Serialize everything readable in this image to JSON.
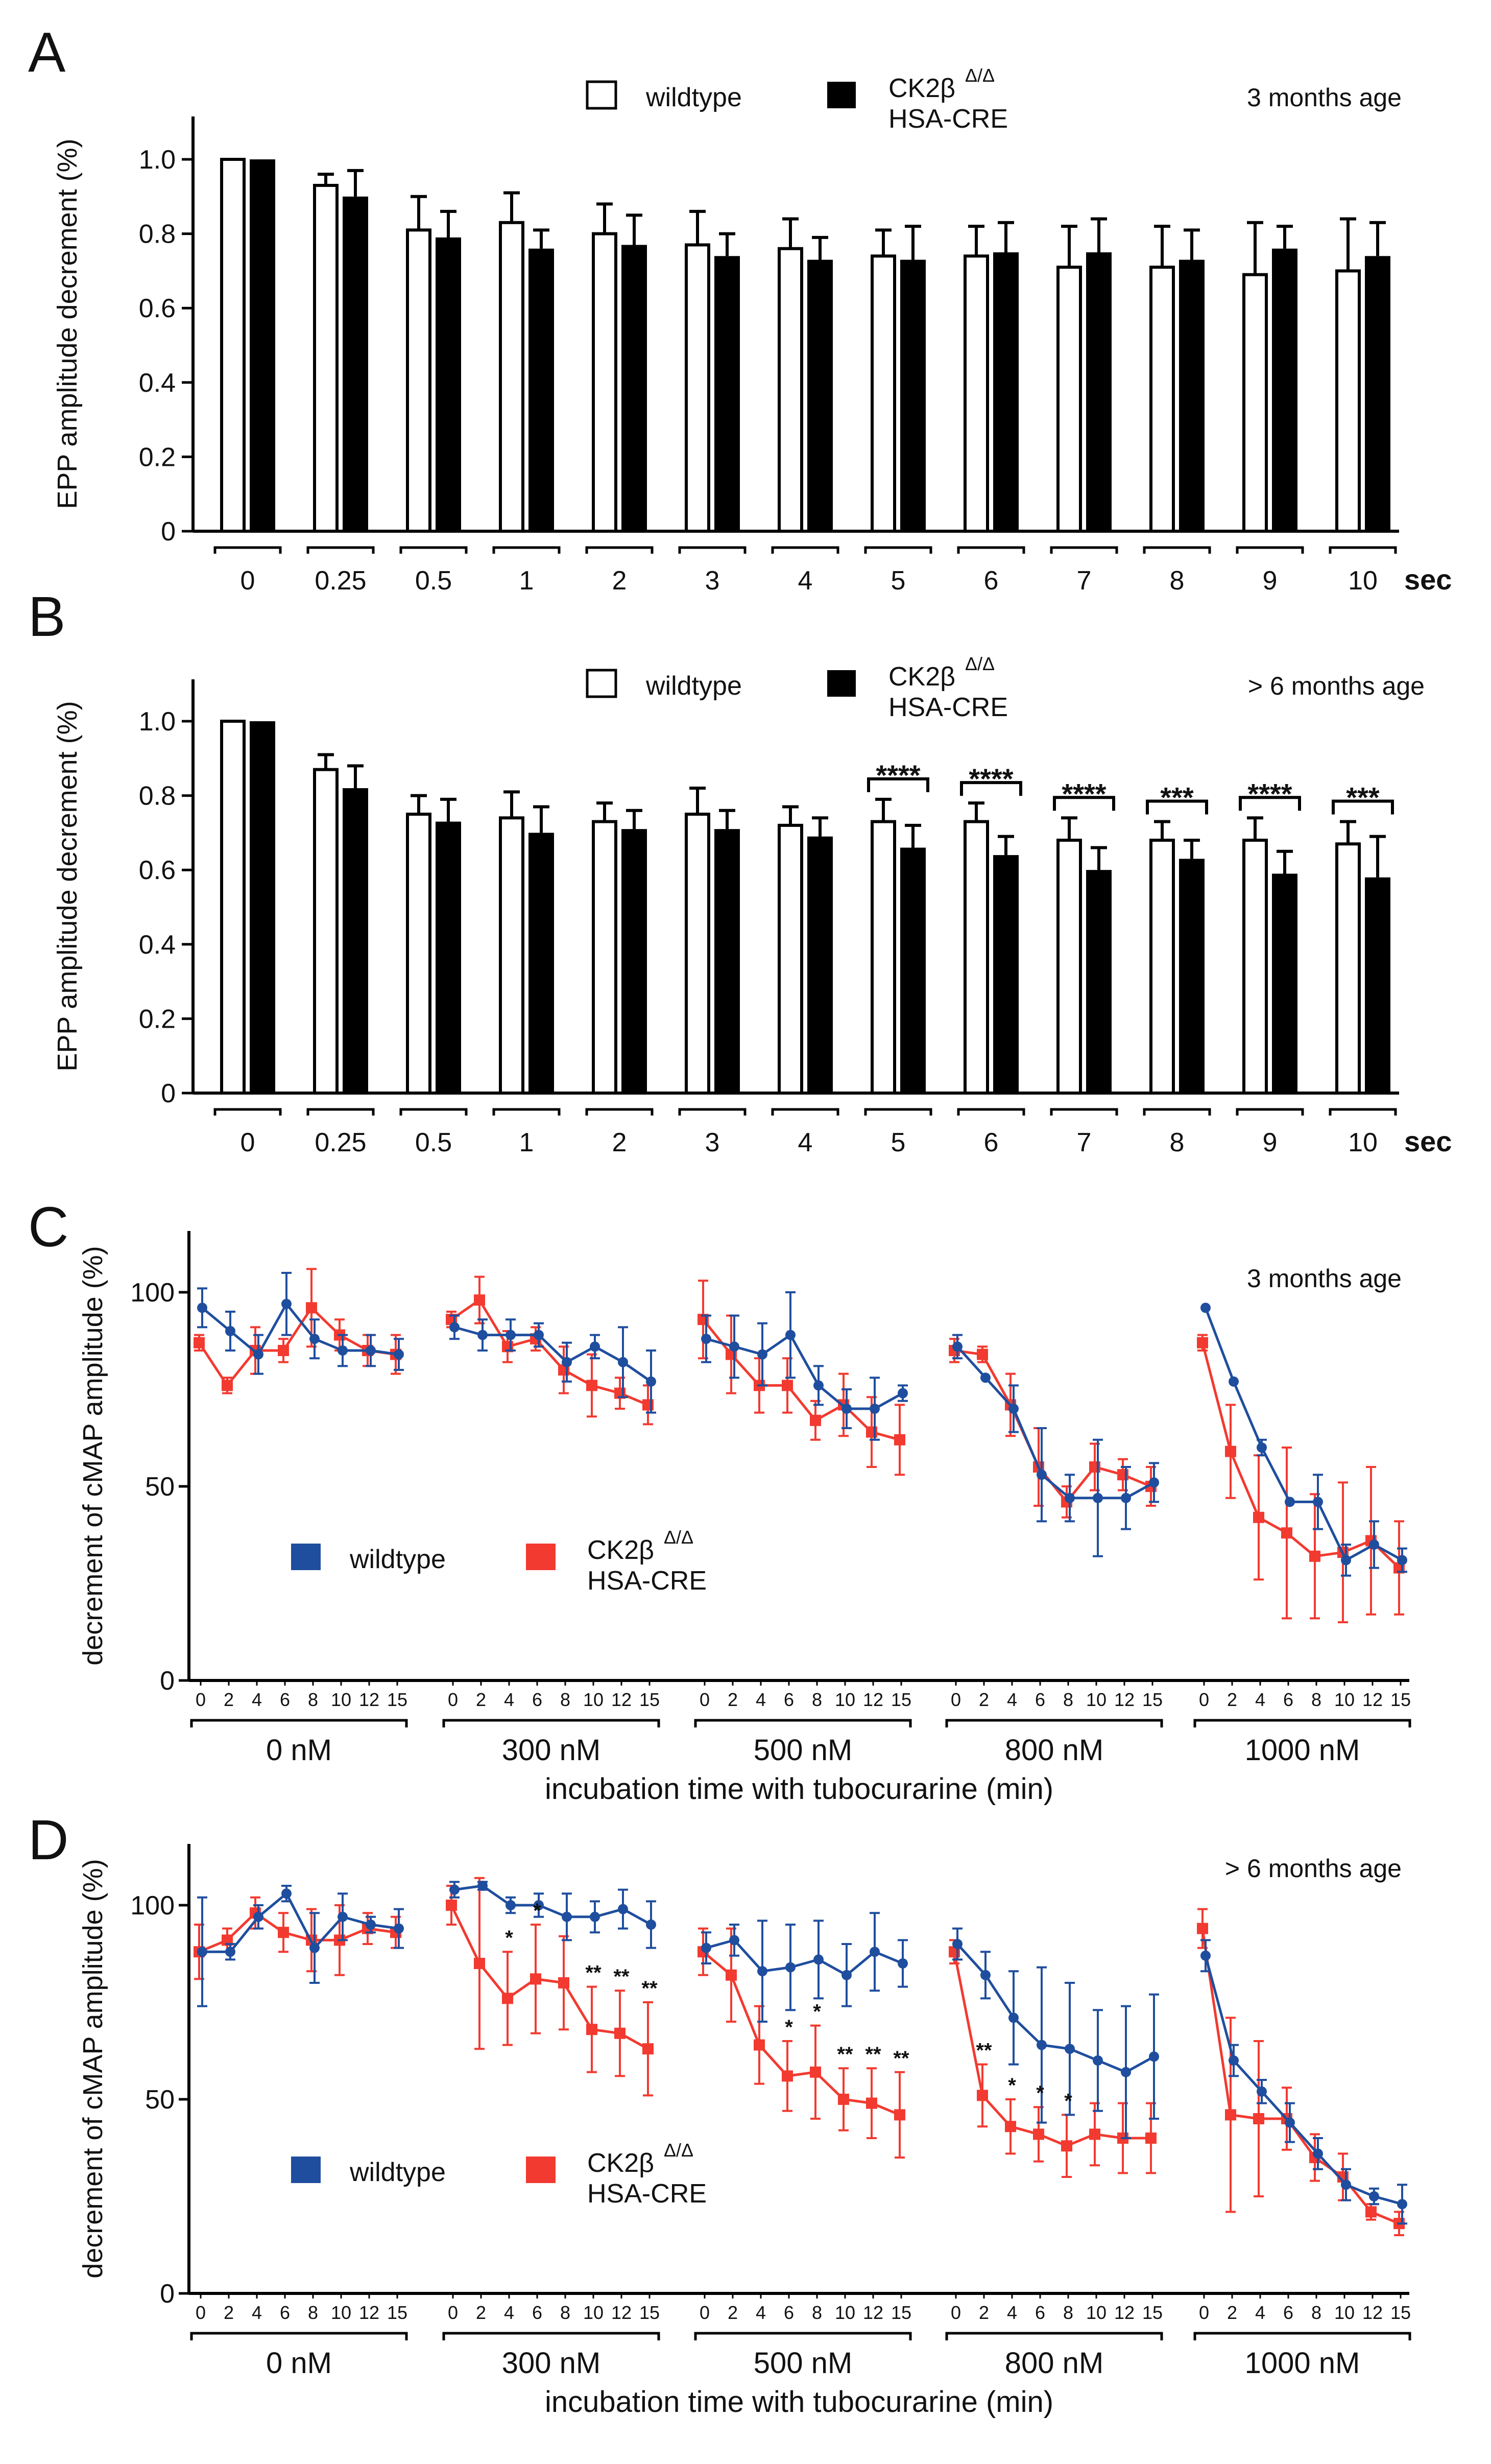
{
  "colors": {
    "wildtype_line": "#1f4e9e",
    "mutant_line": "#f23a30",
    "bar_black": "#000000",
    "bar_white": "#ffffff"
  },
  "legend": {
    "wildtype": "wildtype",
    "mutant_line1": "CK2β",
    "mutant_sup": "Δ/Δ",
    "mutant_line2": "HSA-CRE"
  },
  "chart_data": [
    {
      "panel": "A",
      "type": "bar",
      "age_label": "3 months age",
      "ylabel": "EPP amplitude decrement (%)",
      "ylim": [
        0,
        1.1
      ],
      "yticks": [
        "0",
        "0.2",
        "0.4",
        "0.6",
        "0.8",
        "1.0"
      ],
      "categories": [
        "0",
        "0.25",
        "0.5",
        "1",
        "2",
        "3",
        "4",
        "5",
        "6",
        "7",
        "8",
        "9",
        "10"
      ],
      "x_unit": "sec",
      "series": [
        {
          "name": "wildtype",
          "values": [
            1.0,
            0.93,
            0.81,
            0.83,
            0.8,
            0.77,
            0.76,
            0.74,
            0.74,
            0.71,
            0.71,
            0.69,
            0.7
          ],
          "errors": [
            0,
            0.03,
            0.09,
            0.08,
            0.08,
            0.09,
            0.08,
            0.07,
            0.08,
            0.11,
            0.11,
            0.14,
            0.14
          ]
        },
        {
          "name": "CK2β Δ/Δ HSA-CRE",
          "values": [
            1.0,
            0.9,
            0.79,
            0.76,
            0.77,
            0.74,
            0.73,
            0.73,
            0.75,
            0.75,
            0.73,
            0.76,
            0.74
          ],
          "errors": [
            0,
            0.07,
            0.07,
            0.05,
            0.08,
            0.06,
            0.06,
            0.09,
            0.08,
            0.09,
            0.08,
            0.06,
            0.09
          ]
        }
      ],
      "significance": []
    },
    {
      "panel": "B",
      "type": "bar",
      "age_label": "> 6 months age",
      "ylabel": "EPP amplitude decrement (%)",
      "ylim": [
        0,
        1.1
      ],
      "yticks": [
        "0",
        "0.2",
        "0.4",
        "0.6",
        "0.8",
        "1.0"
      ],
      "categories": [
        "0",
        "0.25",
        "0.5",
        "1",
        "2",
        "3",
        "4",
        "5",
        "6",
        "7",
        "8",
        "9",
        "10"
      ],
      "x_unit": "sec",
      "series": [
        {
          "name": "wildtype",
          "values": [
            1.0,
            0.87,
            0.75,
            0.74,
            0.73,
            0.75,
            0.72,
            0.73,
            0.73,
            0.68,
            0.68,
            0.68,
            0.67
          ],
          "errors": [
            0,
            0.04,
            0.05,
            0.07,
            0.05,
            0.07,
            0.05,
            0.06,
            0.05,
            0.06,
            0.05,
            0.06,
            0.06
          ]
        },
        {
          "name": "CK2β Δ/Δ HSA-CRE",
          "values": [
            1.0,
            0.82,
            0.73,
            0.7,
            0.71,
            0.71,
            0.69,
            0.66,
            0.64,
            0.6,
            0.63,
            0.59,
            0.58
          ],
          "errors": [
            0,
            0.06,
            0.06,
            0.07,
            0.05,
            0.05,
            0.05,
            0.06,
            0.05,
            0.06,
            0.05,
            0.06,
            0.11
          ]
        }
      ],
      "significance": [
        {
          "category": "5",
          "label": "****"
        },
        {
          "category": "6",
          "label": "****"
        },
        {
          "category": "7",
          "label": "****"
        },
        {
          "category": "8",
          "label": "***"
        },
        {
          "category": "9",
          "label": "****"
        },
        {
          "category": "10",
          "label": "***"
        }
      ]
    },
    {
      "panel": "C",
      "type": "line",
      "age_label": "3 months age",
      "ylabel": "decrement of cMAP amplitude (%)",
      "ylim": [
        0,
        105
      ],
      "yticks": [
        "0",
        "50",
        "100"
      ],
      "xlabel": "incubation time with tubocurarine (min)",
      "x_ticks": [
        "0",
        "2",
        "4",
        "6",
        "8",
        "10",
        "12",
        "15"
      ],
      "groups": [
        "0 nM",
        "300 nM",
        "500 nM",
        "800 nM",
        "1000 nM"
      ],
      "series": [
        {
          "name": "wildtype",
          "groups": [
            {
              "values": [
                96,
                90,
                84,
                97,
                88,
                85,
                85,
                84
              ],
              "errors": [
                5,
                5,
                5,
                8,
                5,
                4,
                4,
                4
              ]
            },
            {
              "values": [
                91,
                89,
                89,
                89,
                82,
                86,
                82,
                77
              ],
              "errors": [
                3,
                4,
                4,
                3,
                5,
                3,
                9,
                8
              ]
            },
            {
              "values": [
                88,
                86,
                84,
                89,
                76,
                70,
                70,
                74
              ],
              "errors": [
                6,
                8,
                8,
                11,
                5,
                5,
                8,
                2
              ]
            },
            {
              "values": [
                86,
                78,
                70,
                53,
                47,
                47,
                47,
                51
              ],
              "errors": [
                3,
                0,
                6,
                12,
                6,
                15,
                8,
                5
              ]
            },
            {
              "values": [
                96,
                77,
                60,
                46,
                46,
                31,
                35,
                31
              ],
              "errors": [
                0,
                0,
                2,
                0,
                7,
                4,
                6,
                3
              ]
            }
          ]
        },
        {
          "name": "CK2β Δ/Δ HSA-CRE",
          "groups": [
            {
              "values": [
                87,
                76,
                85,
                85,
                96,
                89,
                85,
                84
              ],
              "errors": [
                2,
                2,
                6,
                3,
                10,
                4,
                4,
                5
              ]
            },
            {
              "values": [
                93,
                98,
                86,
                88,
                80,
                76,
                74,
                71
              ],
              "errors": [
                2,
                6,
                4,
                3,
                6,
                8,
                4,
                5
              ]
            },
            {
              "values": [
                93,
                84,
                76,
                76,
                67,
                71,
                64,
                62
              ],
              "errors": [
                10,
                10,
                7,
                7,
                5,
                8,
                9,
                9
              ]
            },
            {
              "values": [
                85,
                84,
                71,
                55,
                46,
                55,
                53,
                50
              ],
              "errors": [
                3,
                2,
                8,
                10,
                4,
                6,
                4,
                5
              ]
            },
            {
              "values": [
                87,
                59,
                42,
                38,
                32,
                33,
                36,
                29
              ],
              "errors": [
                2,
                12,
                16,
                22,
                16,
                18,
                19,
                12
              ]
            }
          ]
        }
      ],
      "significance": []
    },
    {
      "panel": "D",
      "type": "line",
      "age_label": "> 6 months age",
      "ylabel": "decrement of cMAP amplitude (%)",
      "ylim": [
        0,
        105
      ],
      "yticks": [
        "0",
        "50",
        "100"
      ],
      "xlabel": "incubation time with tubocurarine (min)",
      "x_ticks": [
        "0",
        "2",
        "4",
        "6",
        "8",
        "10",
        "12",
        "15"
      ],
      "groups": [
        "0 nM",
        "300 nM",
        "500 nM",
        "800 nM",
        "1000 nM"
      ],
      "series": [
        {
          "name": "wildtype",
          "groups": [
            {
              "values": [
                88,
                88,
                97,
                103,
                89,
                97,
                95,
                94
              ],
              "errors": [
                14,
                2,
                3,
                2,
                9,
                6,
                2,
                5
              ]
            },
            {
              "values": [
                104,
                105,
                100,
                100,
                97,
                97,
                99,
                95
              ],
              "errors": [
                2,
                1,
                2,
                3,
                6,
                4,
                5,
                6
              ]
            },
            {
              "values": [
                89,
                91,
                83,
                84,
                86,
                82,
                88,
                85
              ],
              "errors": [
                4,
                4,
                13,
                11,
                10,
                8,
                10,
                6
              ]
            },
            {
              "values": [
                90,
                82,
                71,
                64,
                63,
                60,
                57,
                61
              ],
              "errors": [
                4,
                6,
                12,
                20,
                17,
                13,
                17,
                16
              ]
            },
            {
              "values": [
                87,
                60,
                52,
                44,
                36,
                28,
                25,
                23
              ],
              "errors": [
                4,
                4,
                3,
                5,
                4,
                4,
                2,
                5
              ]
            }
          ]
        },
        {
          "name": "CK2β Δ/Δ HSA-CRE",
          "groups": [
            {
              "values": [
                88,
                91,
                98,
                93,
                91,
                91,
                94,
                93
              ],
              "errors": [
                7,
                3,
                4,
                5,
                8,
                9,
                4,
                4
              ]
            },
            {
              "values": [
                100,
                85,
                76,
                81,
                80,
                68,
                67,
                63
              ],
              "errors": [
                5,
                22,
                12,
                14,
                12,
                11,
                11,
                12
              ]
            },
            {
              "values": [
                88,
                82,
                64,
                56,
                57,
                50,
                49,
                46
              ],
              "errors": [
                6,
                12,
                10,
                9,
                12,
                8,
                9,
                11
              ]
            },
            {
              "values": [
                88,
                51,
                43,
                41,
                38,
                41,
                40,
                40
              ],
              "errors": [
                3,
                8,
                7,
                7,
                8,
                8,
                9,
                9
              ]
            },
            {
              "values": [
                94,
                46,
                45,
                45,
                35,
                30,
                21,
                18
              ],
              "errors": [
                5,
                25,
                20,
                8,
                6,
                6,
                2,
                3
              ]
            }
          ]
        }
      ],
      "significance": [
        {
          "group": 1,
          "point": 2,
          "label": "*"
        },
        {
          "group": 1,
          "point": 3,
          "label": "*"
        },
        {
          "group": 1,
          "point": 5,
          "label": "**"
        },
        {
          "group": 1,
          "point": 6,
          "label": "**"
        },
        {
          "group": 1,
          "point": 7,
          "label": "**"
        },
        {
          "group": 2,
          "point": 3,
          "label": "*"
        },
        {
          "group": 2,
          "point": 4,
          "label": "*"
        },
        {
          "group": 2,
          "point": 5,
          "label": "**"
        },
        {
          "group": 2,
          "point": 6,
          "label": "**"
        },
        {
          "group": 2,
          "point": 7,
          "label": "**"
        },
        {
          "group": 3,
          "point": 1,
          "label": "**"
        },
        {
          "group": 3,
          "point": 2,
          "label": "*"
        },
        {
          "group": 3,
          "point": 3,
          "label": "*"
        },
        {
          "group": 3,
          "point": 4,
          "label": "*"
        }
      ]
    }
  ]
}
